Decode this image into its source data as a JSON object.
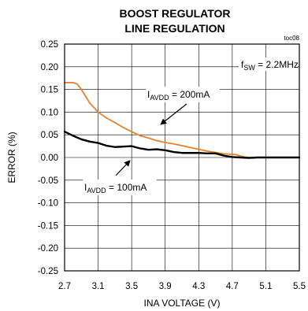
{
  "chart_data": {
    "type": "line",
    "title_line1": "BOOST REGULATOR",
    "title_line2": "LINE REGULATION",
    "figure_id": "toc08",
    "xlabel": "INA VOLTAGE (V)",
    "ylabel": "ERROR (%)",
    "xlim": [
      2.7,
      5.5
    ],
    "ylim": [
      -0.25,
      0.25
    ],
    "x_ticks": [
      "2.7",
      "3.1",
      "3.5",
      "3.9",
      "4.3",
      "4.7",
      "5.1",
      "5.5"
    ],
    "y_ticks": [
      "0.25",
      "0.20",
      "0.15",
      "0.10",
      "0.05",
      "0.00",
      "-0.05",
      "-0.10",
      "-0.15",
      "-0.20",
      "-0.25"
    ],
    "grid": true,
    "annotation_fsw": {
      "main": "f",
      "sub": "SW",
      "rest": " = 2.2MHz"
    },
    "series": [
      {
        "label_main": "I",
        "label_sub": "AVDD",
        "label_rest": " = 200mA",
        "color": "#e8822a",
        "x": [
          2.7,
          2.8,
          2.85,
          2.9,
          2.95,
          3.0,
          3.1,
          3.2,
          3.3,
          3.4,
          3.5,
          3.6,
          3.7,
          3.8,
          3.9,
          4.0,
          4.1,
          4.2,
          4.3,
          4.4,
          4.5,
          4.6,
          4.7,
          4.75,
          4.8,
          4.85,
          4.9,
          5.0,
          5.1,
          5.2,
          5.3,
          5.4,
          5.5
        ],
        "y": [
          0.165,
          0.165,
          0.162,
          0.15,
          0.135,
          0.12,
          0.1,
          0.087,
          0.077,
          0.066,
          0.057,
          0.048,
          0.043,
          0.037,
          0.033,
          0.03,
          0.026,
          0.022,
          0.018,
          0.014,
          0.011,
          0.008,
          0.007,
          0.006,
          0.003,
          0.001,
          0.0,
          0.0,
          0.0,
          0.0,
          0.0,
          0.0,
          0.0
        ]
      },
      {
        "label_main": "I",
        "label_sub": "AVDD",
        "label_rest": " = 100mA",
        "color": "#000000",
        "x": [
          2.7,
          2.8,
          2.9,
          3.0,
          3.1,
          3.2,
          3.3,
          3.4,
          3.5,
          3.6,
          3.7,
          3.8,
          3.9,
          4.0,
          4.1,
          4.2,
          4.3,
          4.4,
          4.5,
          4.6,
          4.7,
          4.8,
          4.9,
          5.0,
          5.1,
          5.2,
          5.3,
          5.4,
          5.5
        ],
        "y": [
          0.057,
          0.048,
          0.04,
          0.035,
          0.032,
          0.026,
          0.023,
          0.024,
          0.025,
          0.02,
          0.017,
          0.018,
          0.016,
          0.012,
          0.01,
          0.01,
          0.01,
          0.009,
          0.009,
          0.004,
          0.001,
          0.0,
          -0.001,
          0.0,
          0.0,
          0.0,
          0.0,
          0.0,
          0.0
        ]
      }
    ]
  }
}
